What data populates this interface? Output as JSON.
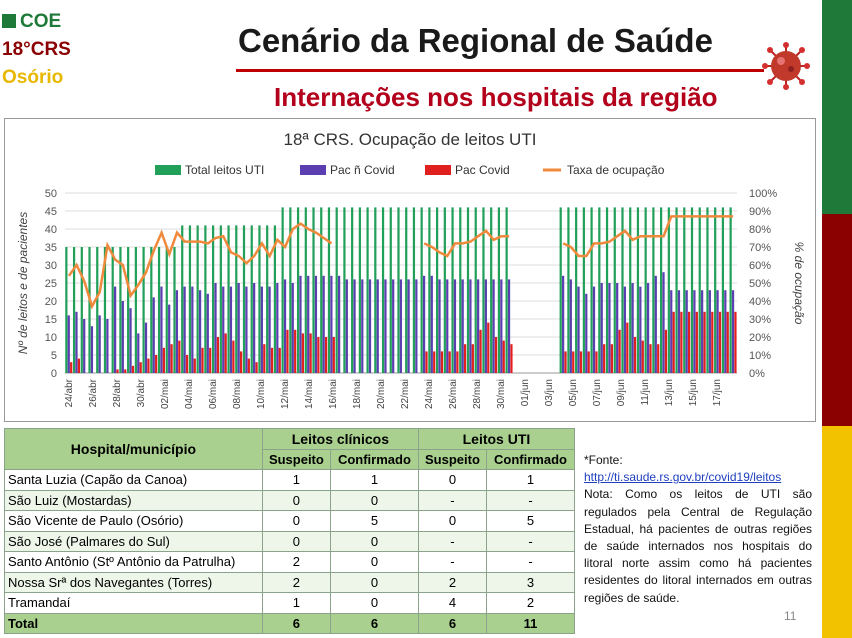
{
  "brand": {
    "line1": "COE",
    "line2": "18°CRS",
    "line3": "Osório",
    "colors": {
      "green": "#1f7a3a",
      "red": "#8b0000",
      "yellow": "#f2c200"
    }
  },
  "header": {
    "title": "Cenário da Regional de Saúde",
    "subtitle": "Internações nos hospitais da região",
    "virus_icon": "coronavirus-icon"
  },
  "chart_data": {
    "type": "bar",
    "title": "18ª CRS. Ocupação de leitos UTI",
    "ylabel": "Nº de leitos e de pacientes",
    "y2label": "% de ocupação",
    "ylim": [
      0,
      50
    ],
    "y2lim": [
      0,
      100
    ],
    "yticks": [
      "0",
      "5",
      "10",
      "15",
      "20",
      "25",
      "30",
      "35",
      "40",
      "45",
      "50"
    ],
    "y2ticks": [
      "0%",
      "10%",
      "20%",
      "30%",
      "40%",
      "50%",
      "60%",
      "70%",
      "80%",
      "90%",
      "100%"
    ],
    "grid": true,
    "legend_position": "top",
    "xticklabels": [
      "24/abr",
      "26/abr",
      "28/abr",
      "30/abr",
      "02/mai",
      "04/mai",
      "06/mai",
      "08/mai",
      "10/mai",
      "12/mai",
      "14/mai",
      "16/mai",
      "18/mai",
      "20/mai",
      "22/mai",
      "24/mai",
      "26/mai",
      "28/mai",
      "30/mai",
      "01/jun",
      "03/jun",
      "05/jun",
      "07/jun",
      "09/jun",
      "11/jun",
      "13/jun",
      "15/jun",
      "17/jun"
    ],
    "series": [
      {
        "name": "Total leitos UTI",
        "color": "#21a05a",
        "values": [
          35,
          35,
          35,
          35,
          35,
          35,
          35,
          35,
          35,
          35,
          35,
          35,
          35,
          35,
          35,
          41,
          41,
          41,
          41,
          41,
          41,
          41,
          41,
          41,
          41,
          41,
          41,
          41,
          46,
          46,
          46,
          46,
          46,
          46,
          46,
          46,
          46,
          46,
          46,
          46,
          46,
          46,
          46,
          46,
          46,
          46,
          46,
          46,
          46,
          46,
          46,
          46,
          46,
          46,
          46,
          46,
          46,
          46,
          null,
          null,
          null,
          null,
          null,
          null,
          46,
          46,
          46,
          46,
          46,
          46,
          46,
          46,
          46,
          46,
          46,
          46,
          46,
          46,
          46,
          46,
          46,
          46,
          46,
          46,
          46,
          46,
          46
        ]
      },
      {
        "name": "Pac ñ Covid",
        "color": "#5b3fb0",
        "values": [
          16,
          17,
          15,
          13,
          16,
          15,
          24,
          20,
          18,
          11,
          14,
          21,
          24,
          19,
          23,
          24,
          24,
          23,
          22,
          25,
          24,
          24,
          25,
          24,
          25,
          24,
          24,
          25,
          26,
          25,
          27,
          27,
          27,
          27,
          27,
          27,
          26,
          26,
          26,
          26,
          26,
          26,
          26,
          26,
          26,
          26,
          27,
          27,
          26,
          26,
          26,
          26,
          26,
          26,
          26,
          26,
          26,
          26,
          null,
          null,
          null,
          null,
          null,
          null,
          27,
          26,
          24,
          22,
          24,
          25,
          25,
          25,
          24,
          25,
          24,
          25,
          27,
          28,
          23,
          23,
          23,
          23,
          23,
          23,
          23,
          23,
          23
        ]
      },
      {
        "name": "Pac Covid",
        "color": "#e01f1f",
        "values": [
          3,
          4,
          0,
          0,
          0,
          0,
          1,
          1,
          2,
          3,
          4,
          5,
          7,
          8,
          9,
          5,
          4,
          7,
          7,
          10,
          11,
          9,
          6,
          4,
          3,
          8,
          7,
          7,
          12,
          12,
          11,
          11,
          10,
          10,
          10,
          null,
          null,
          null,
          null,
          null,
          null,
          null,
          null,
          null,
          null,
          null,
          6,
          6,
          6,
          6,
          6,
          8,
          8,
          12,
          14,
          10,
          9,
          8,
          null,
          null,
          null,
          null,
          null,
          null,
          6,
          6,
          6,
          6,
          6,
          8,
          8,
          12,
          14,
          10,
          9,
          8,
          8,
          12,
          17,
          17,
          17,
          17,
          17,
          17,
          17,
          17,
          17
        ]
      },
      {
        "name": "Taxa de ocupação",
        "color": "#ef8a3c",
        "values": [
          54,
          60,
          51,
          37,
          45,
          71,
          63,
          60,
          43,
          49,
          56,
          68,
          78,
          66,
          78,
          73,
          73,
          73,
          72,
          75,
          76,
          67,
          65,
          61,
          65,
          72,
          65,
          74,
          70,
          80,
          83,
          80,
          78,
          75,
          72,
          null,
          null,
          null,
          null,
          null,
          null,
          null,
          null,
          null,
          null,
          null,
          72,
          70,
          67,
          65,
          72,
          72,
          73,
          76,
          79,
          74,
          76,
          76,
          null,
          null,
          null,
          null,
          null,
          null,
          72,
          70,
          65,
          65,
          72,
          72,
          73,
          76,
          79,
          74,
          76,
          76,
          76,
          76,
          87,
          87,
          87,
          87,
          87,
          87,
          87,
          87,
          87
        ]
      }
    ],
    "ylabels_pct": [
      "54%",
      "60%",
      "51%",
      "37%",
      "45%",
      "71%",
      "63%",
      "60%",
      "43%",
      "56%",
      "68%",
      "78%",
      "66%",
      "78%",
      "73%",
      "73%",
      "73%",
      "72%",
      "75%",
      "76%",
      "67%",
      "65%",
      "72%",
      "74%",
      "80%",
      "83%",
      "78%",
      "72%",
      "70%",
      "65%",
      "72%",
      "74%",
      "76%",
      "76%",
      "87%"
    ]
  },
  "table": {
    "headers": {
      "col1": "Hospital/município",
      "group1": "Leitos clínicos",
      "group2": "Leitos UTI",
      "sub": [
        "Suspeito",
        "Confirmado",
        "Suspeito",
        "Confirmado"
      ]
    },
    "rows": [
      {
        "name": "Santa Luzia (Capão da Canoa)",
        "v": [
          "1",
          "1",
          "0",
          "1"
        ]
      },
      {
        "name": "São Luiz (Mostardas)",
        "v": [
          "0",
          "0",
          "-",
          "-"
        ]
      },
      {
        "name": "São Vicente de Paulo (Osório)",
        "v": [
          "0",
          "5",
          "0",
          "5"
        ]
      },
      {
        "name": "São José (Palmares do Sul)",
        "v": [
          "0",
          "0",
          "-",
          "-"
        ]
      },
      {
        "name": "Santo Antônio (Stº Antônio da Patrulha)",
        "v": [
          "2",
          "0",
          "-",
          "-"
        ]
      },
      {
        "name": "Nossa Srª dos Navegantes (Torres)",
        "v": [
          "2",
          "0",
          "2",
          "3"
        ]
      },
      {
        "name": "Tramandaí",
        "v": [
          "1",
          "0",
          "4",
          "2"
        ]
      }
    ],
    "total": {
      "name": "Total",
      "v": [
        "6",
        "6",
        "6",
        "11"
      ]
    }
  },
  "note": {
    "label": "*Fonte:",
    "link": "http://ti.saude.rs.gov.br/covid19/leitos",
    "text": "Nota: Como os leitos de UTI são regulados pela Central de Regulação Estadual, há pacientes de outras regiões de saúde internados nos hospitais do litoral norte assim como há pacientes residentes do litoral internados em outras regiões de saúde."
  },
  "page_number": "11"
}
